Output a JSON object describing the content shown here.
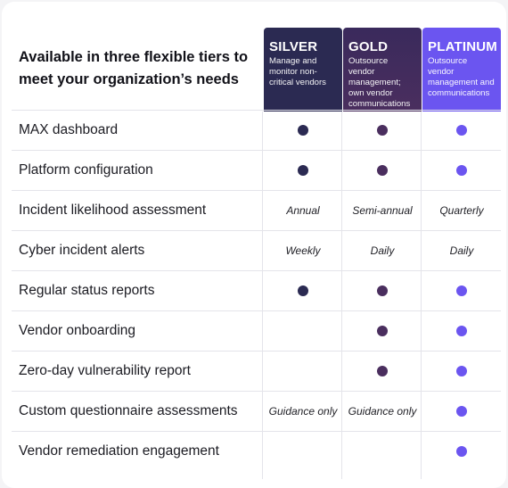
{
  "header": {
    "title": "Available in three flexible tiers to meet your organization’s needs"
  },
  "tiers": [
    {
      "name": "SILVER",
      "description": "Manage and monitor non-critical vendors",
      "color": "#2b2a52"
    },
    {
      "name": "GOLD",
      "description": "Outsource vendor management; own vendor communications",
      "color": "#4a2e5e"
    },
    {
      "name": "PLATINUM",
      "description": "Outsource vendor management and communications",
      "color": "#6b55f0"
    }
  ],
  "rows": [
    {
      "label": "MAX dashboard",
      "cells": [
        "dot",
        "dot",
        "dot"
      ]
    },
    {
      "label": "Platform configuration",
      "cells": [
        "dot",
        "dot",
        "dot"
      ]
    },
    {
      "label": "Incident likelihood assessment",
      "cells": [
        "Annual",
        "Semi-annual",
        "Quarterly"
      ]
    },
    {
      "label": "Cyber incident alerts",
      "cells": [
        "Weekly",
        "Daily",
        "Daily"
      ]
    },
    {
      "label": "Regular status reports",
      "cells": [
        "dot",
        "dot",
        "dot"
      ]
    },
    {
      "label": "Vendor onboarding",
      "cells": [
        "",
        "dot",
        "dot"
      ]
    },
    {
      "label": "Zero-day vulnerability report",
      "cells": [
        "",
        "dot",
        "dot"
      ]
    },
    {
      "label": "Custom questionnaire assessments",
      "cells": [
        "Guidance only",
        "Guidance only",
        "dot"
      ]
    },
    {
      "label": "Vendor remediation engagement",
      "cells": [
        "",
        "",
        "dot"
      ]
    }
  ]
}
